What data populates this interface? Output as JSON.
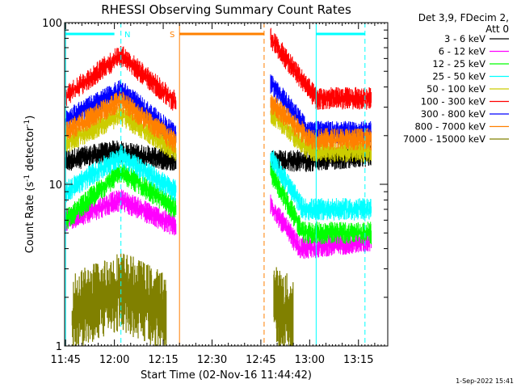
{
  "chart_data": {
    "type": "line",
    "title": "RHESSI Observing Summary Count Rates",
    "xlabel": "Start Time (02-Nov-16 11:44:42)",
    "ylabel": "Count Rate (s⁻¹ detector⁻¹)",
    "ylabel_parts": {
      "base": "Count Rate (s",
      "sup1": "-1",
      "mid": " detector",
      "sup2": "-1",
      "end": ")"
    },
    "y_scale": "log",
    "ylim": [
      1,
      100
    ],
    "xlim_minutes": [
      "11:44:42",
      "13:24:00"
    ],
    "x_ticks": [
      "11:45",
      "12:00",
      "12:15",
      "12:30",
      "12:45",
      "13:00",
      "13:15"
    ],
    "y_ticks": [
      "1",
      "10",
      "100"
    ],
    "legend_header": [
      "Det 3,9, FDecim 2,",
      "Att 0"
    ],
    "legend_placement": "right",
    "series": [
      {
        "name": "3 - 6 keV",
        "color": "#000000",
        "segments": [
          [
            [
              "11:45",
              14
            ],
            [
              "12:00",
              16
            ],
            [
              "12:19",
              14
            ]
          ],
          [
            [
              "12:48",
              14
            ],
            [
              "13:00",
              14
            ],
            [
              "13:19",
              15
            ]
          ]
        ]
      },
      {
        "name": "6 - 12 keV",
        "color": "#ff00ff",
        "segments": [
          [
            [
              "11:45",
              6
            ],
            [
              "12:02",
              8
            ],
            [
              "12:19",
              5.5
            ]
          ],
          [
            [
              "12:48",
              7.5
            ],
            [
              "12:57",
              4
            ],
            [
              "13:19",
              4.5
            ]
          ]
        ]
      },
      {
        "name": "12 - 25 keV",
        "color": "#00ff00",
        "segments": [
          [
            [
              "11:45",
              6
            ],
            [
              "12:02",
              12
            ],
            [
              "12:19",
              7
            ]
          ],
          [
            [
              "12:48",
              12
            ],
            [
              "12:58",
              5
            ],
            [
              "13:19",
              5
            ]
          ]
        ]
      },
      {
        "name": "25 - 50 keV",
        "color": "#00ffff",
        "segments": [
          [
            [
              "11:45",
              9
            ],
            [
              "12:02",
              15
            ],
            [
              "12:19",
              9
            ]
          ],
          [
            [
              "12:48",
              15
            ],
            [
              "12:58",
              7
            ],
            [
              "13:19",
              7
            ]
          ]
        ]
      },
      {
        "name": "50 - 100 keV",
        "color": "#cccc00",
        "segments": [
          [
            [
              "11:45",
              18
            ],
            [
              "12:02",
              27
            ],
            [
              "12:19",
              16
            ]
          ],
          [
            [
              "12:48",
              28
            ],
            [
              "13:00",
              16
            ],
            [
              "13:19",
              16
            ]
          ]
        ]
      },
      {
        "name": "100 - 300 keV",
        "color": "#ff0000",
        "segments": [
          [
            [
              "11:45",
              35
            ],
            [
              "12:02",
              63
            ],
            [
              "12:19",
              32
            ]
          ],
          [
            [
              "12:48",
              80
            ],
            [
              "13:02",
              34
            ],
            [
              "13:19",
              34
            ]
          ]
        ]
      },
      {
        "name": "300 - 800 keV",
        "color": "#0000ff",
        "segments": [
          [
            [
              "11:45",
              25
            ],
            [
              "12:02",
              38
            ],
            [
              "12:19",
              20
            ]
          ],
          [
            [
              "12:48",
              42
            ],
            [
              "13:00",
              21
            ],
            [
              "13:19",
              21
            ]
          ]
        ]
      },
      {
        "name": "800 - 7000 keV",
        "color": "#ff8000",
        "segments": [
          [
            [
              "11:45",
              21
            ],
            [
              "12:02",
              33
            ],
            [
              "12:19",
              18
            ]
          ],
          [
            [
              "12:48",
              32
            ],
            [
              "13:00",
              19
            ],
            [
              "13:19",
              19
            ]
          ]
        ]
      },
      {
        "name": "7000 - 15000 keV",
        "color": "#808000",
        "segments": [
          [
            [
              "11:47",
              1.6
            ],
            [
              "12:02",
              2.2
            ],
            [
              "12:16",
              1.6
            ]
          ],
          [
            [
              "12:49",
              1.8
            ],
            [
              "12:55",
              1.5
            ]
          ]
        ]
      }
    ],
    "annotations": [
      {
        "label": "N",
        "color": "#00ffff",
        "kind": "night",
        "bars": [
          [
            "11:45",
            "12:00"
          ],
          [
            "13:02",
            "13:17"
          ]
        ],
        "lines_solid": [
          "11:45",
          "13:02"
        ],
        "lines_dashed": [
          "12:02",
          "13:17"
        ]
      },
      {
        "label": "S",
        "color": "#ff8000",
        "kind": "saa",
        "bars": [
          [
            "12:20",
            "12:46"
          ]
        ],
        "lines_solid": [
          "12:20"
        ],
        "lines_dashed": [
          "12:46"
        ]
      }
    ]
  },
  "footer_date": "1-Sep-2022 15:41"
}
